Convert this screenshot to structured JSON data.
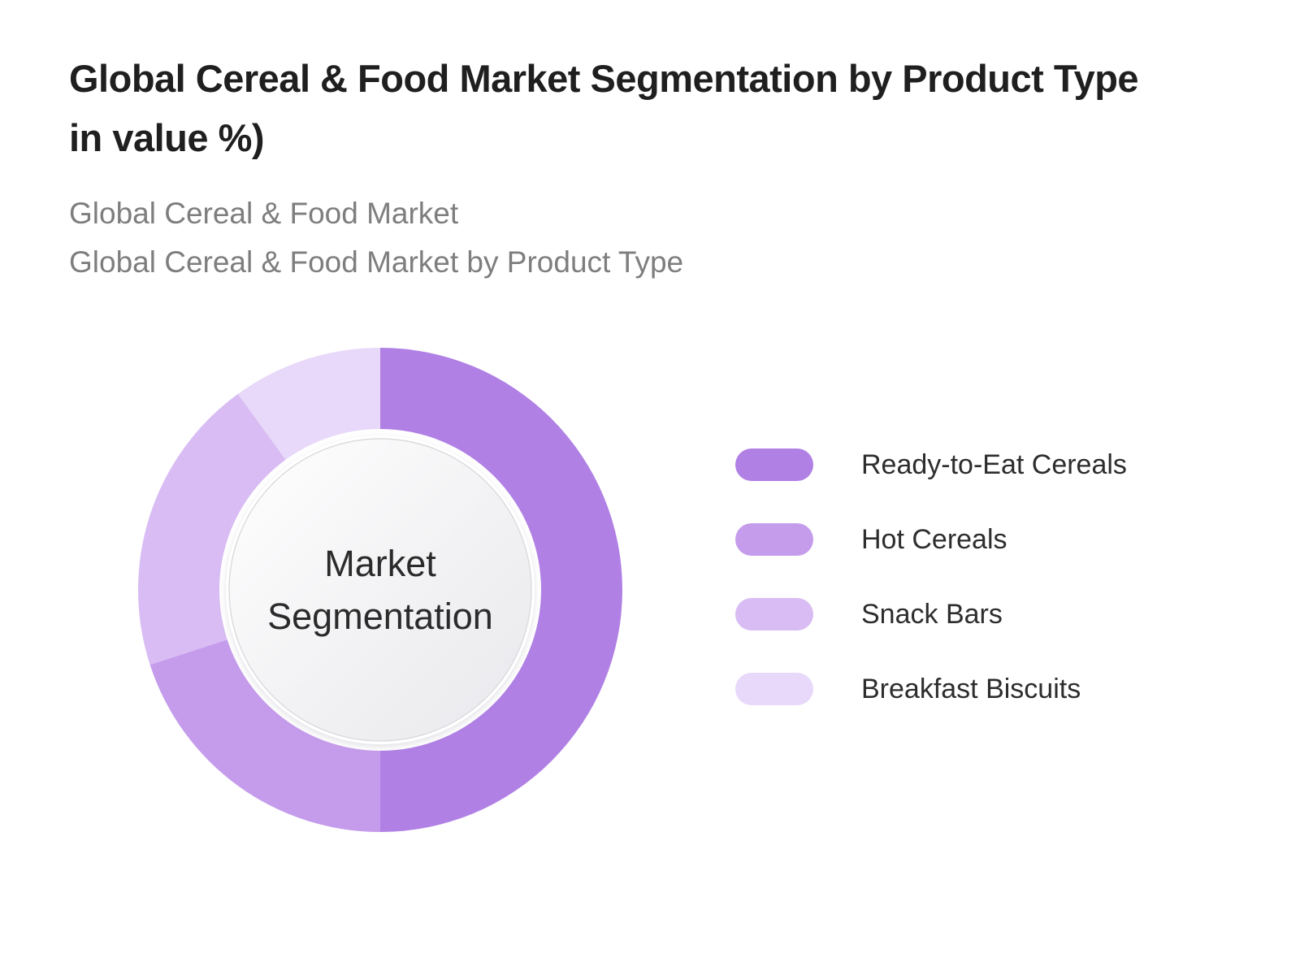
{
  "page": {
    "background_color": "#ffffff"
  },
  "header": {
    "title_lines": [
      "Global Cereal & Food Market Segmentation by Product Type",
      "in value %)"
    ],
    "title_color": "#1f1f1f",
    "subtitle_line1": "Global Cereal & Food Market",
    "subtitle_line2": "Global Cereal & Food Market by Product Type",
    "subtitle_color": "#7e7e7e"
  },
  "chart_data": {
    "type": "pie",
    "variant": "donut",
    "title": "Global Cereal & Food Market Segmentation by Product Type in value %)",
    "center_label_lines": [
      "Market",
      "Segmentation"
    ],
    "categories": [
      "Ready-to-Eat Cereals",
      "Hot Cereals",
      "Snack Bars",
      "Breakfast Biscuits"
    ],
    "values": [
      50,
      20,
      20,
      10
    ],
    "unit": "percent of value",
    "colors": [
      "#b080e5",
      "#c59ceb",
      "#d8bcf3",
      "#e8d8f9"
    ],
    "start_angle_deg": 0,
    "direction": "clockwise",
    "legend_position": "right",
    "data_labels_shown": false,
    "inner_circle_colors": [
      "#ffffff",
      "#e9e9ed"
    ]
  }
}
